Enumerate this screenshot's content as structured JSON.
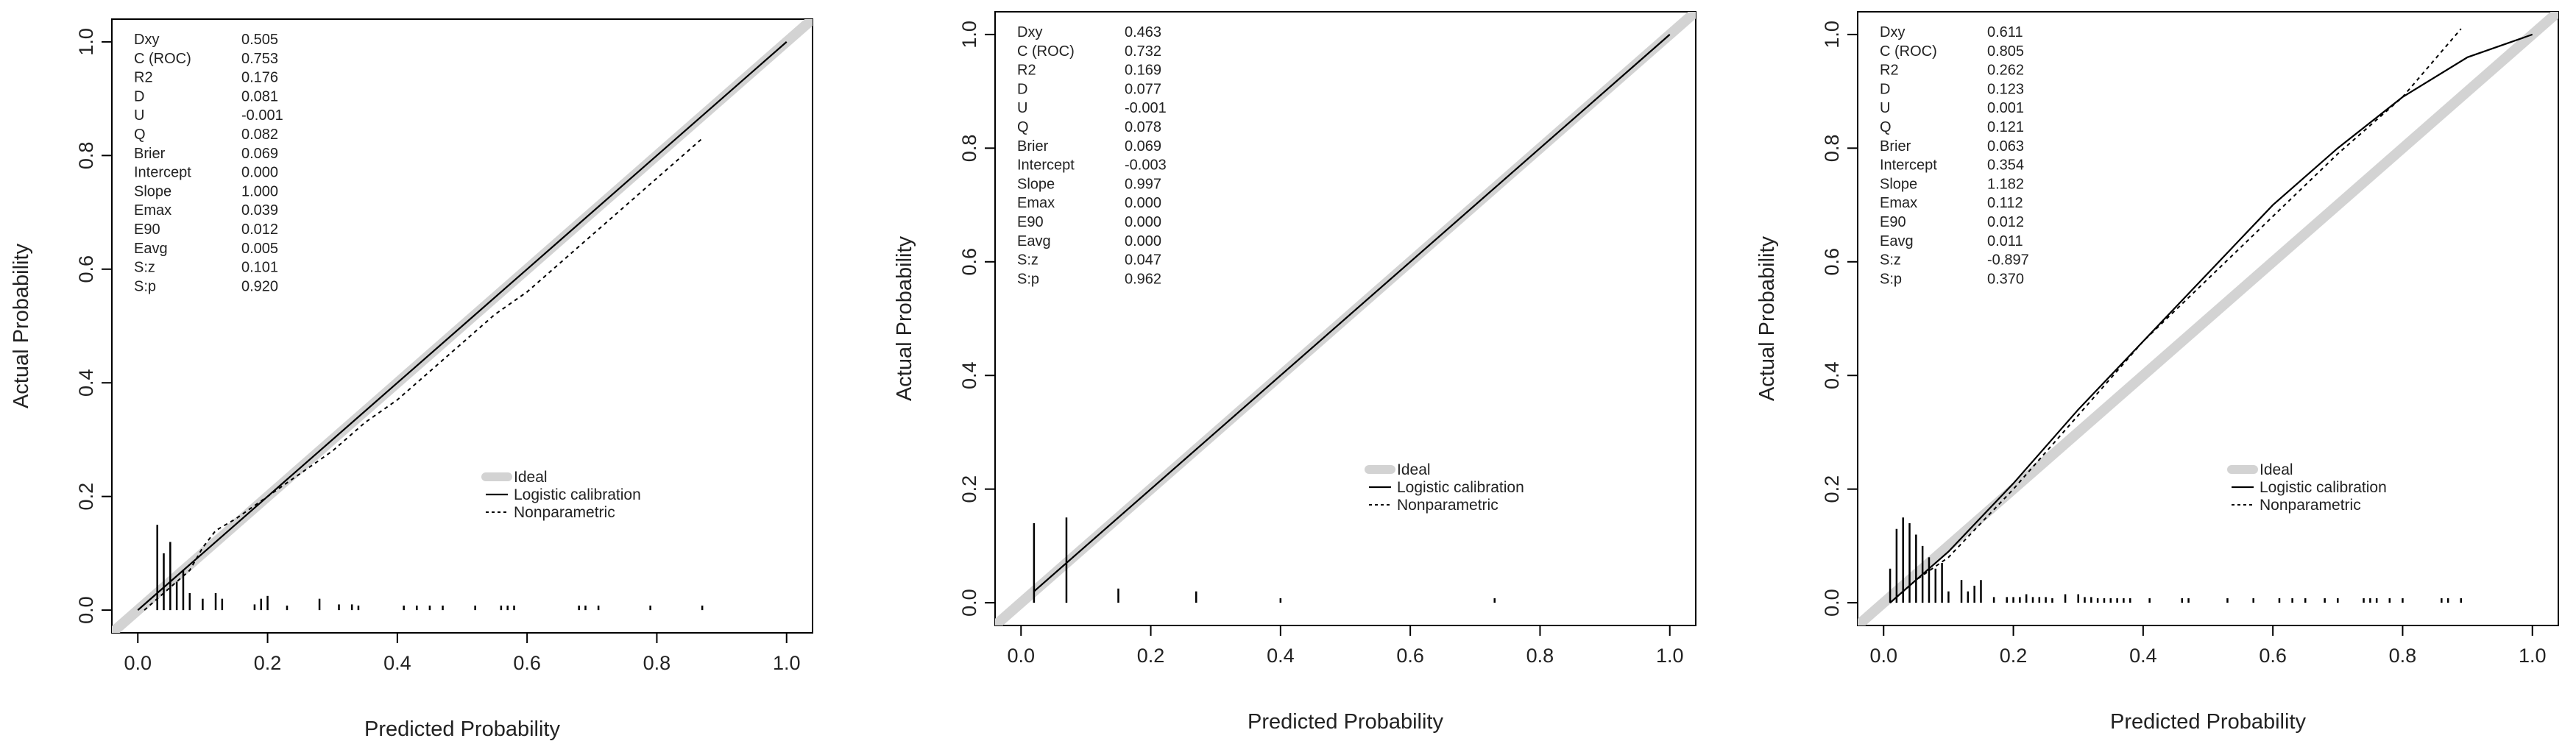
{
  "colors": {
    "ideal_line": "#d3d3d3",
    "calibration_line": "#000000",
    "axis": "#000000",
    "text": "#222222"
  },
  "chart_data": [
    {
      "type": "line",
      "title": "",
      "xlabel": "Predicted Probability",
      "ylabel": "Actual Probability",
      "xlim": [
        -0.04,
        1.04
      ],
      "ylim": [
        -0.04,
        1.04
      ],
      "x_ticks": [
        0.0,
        0.2,
        0.4,
        0.6,
        0.8,
        1.0
      ],
      "x_tick_labels": [
        "0.0",
        "0.2",
        "0.4",
        "0.6",
        "0.8",
        "1.0"
      ],
      "y_ticks": [
        0.0,
        0.2,
        0.4,
        0.6,
        0.8,
        1.0
      ],
      "y_tick_labels": [
        "0.0",
        "0.2",
        "0.4",
        "0.6",
        "0.8",
        "1.0"
      ],
      "grid": false,
      "legend_position": "lower-right",
      "legend": [
        "Ideal",
        "Logistic calibration",
        "Nonparametric"
      ],
      "stats": [
        {
          "label": "Dxy",
          "value": "0.505"
        },
        {
          "label": "C (ROC)",
          "value": "0.753"
        },
        {
          "label": "R2",
          "value": "0.176"
        },
        {
          "label": "D",
          "value": "0.081"
        },
        {
          "label": "U",
          "value": "-0.001"
        },
        {
          "label": "Q",
          "value": "0.082"
        },
        {
          "label": "Brier",
          "value": "0.069"
        },
        {
          "label": "Intercept",
          "value": "0.000"
        },
        {
          "label": "Slope",
          "value": "1.000"
        },
        {
          "label": "Emax",
          "value": "0.039"
        },
        {
          "label": "E90",
          "value": "0.012"
        },
        {
          "label": "Eavg",
          "value": "0.005"
        },
        {
          "label": "S:z",
          "value": "0.101"
        },
        {
          "label": "S:p",
          "value": "0.920"
        }
      ],
      "ideal": {
        "x": [
          0,
          1
        ],
        "y": [
          0,
          1
        ]
      },
      "logistic": {
        "x": [
          0.0,
          0.2,
          0.4,
          0.6,
          0.8,
          1.0
        ],
        "y": [
          0.0,
          0.2,
          0.4,
          0.6,
          0.8,
          1.0
        ]
      },
      "nonparametric": {
        "x": [
          0.01,
          0.05,
          0.08,
          0.1,
          0.12,
          0.15,
          0.2,
          0.25,
          0.3,
          0.35,
          0.4,
          0.45,
          0.5,
          0.55,
          0.6,
          0.65,
          0.7,
          0.75,
          0.8,
          0.87
        ],
        "y": [
          0.0,
          0.04,
          0.07,
          0.11,
          0.14,
          0.16,
          0.2,
          0.24,
          0.28,
          0.33,
          0.37,
          0.42,
          0.47,
          0.52,
          0.56,
          0.61,
          0.66,
          0.71,
          0.76,
          0.83
        ]
      },
      "rug": [
        {
          "x": 0.03,
          "h": 0.15
        },
        {
          "x": 0.04,
          "h": 0.1
        },
        {
          "x": 0.05,
          "h": 0.12
        },
        {
          "x": 0.06,
          "h": 0.05
        },
        {
          "x": 0.07,
          "h": 0.07
        },
        {
          "x": 0.08,
          "h": 0.03
        },
        {
          "x": 0.1,
          "h": 0.02
        },
        {
          "x": 0.12,
          "h": 0.03
        },
        {
          "x": 0.13,
          "h": 0.02
        },
        {
          "x": 0.18,
          "h": 0.01
        },
        {
          "x": 0.19,
          "h": 0.02
        },
        {
          "x": 0.2,
          "h": 0.025
        },
        {
          "x": 0.23,
          "h": 0.008
        },
        {
          "x": 0.28,
          "h": 0.02
        },
        {
          "x": 0.31,
          "h": 0.01
        },
        {
          "x": 0.33,
          "h": 0.01
        },
        {
          "x": 0.34,
          "h": 0.008
        },
        {
          "x": 0.41,
          "h": 0.008
        },
        {
          "x": 0.43,
          "h": 0.008
        },
        {
          "x": 0.45,
          "h": 0.008
        },
        {
          "x": 0.47,
          "h": 0.008
        },
        {
          "x": 0.52,
          "h": 0.008
        },
        {
          "x": 0.56,
          "h": 0.008
        },
        {
          "x": 0.57,
          "h": 0.008
        },
        {
          "x": 0.58,
          "h": 0.008
        },
        {
          "x": 0.68,
          "h": 0.008
        },
        {
          "x": 0.69,
          "h": 0.008
        },
        {
          "x": 0.71,
          "h": 0.008
        },
        {
          "x": 0.79,
          "h": 0.008
        },
        {
          "x": 0.87,
          "h": 0.008
        }
      ]
    },
    {
      "type": "line",
      "title": "",
      "xlabel": "Predicted Probability",
      "ylabel": "Actual Probability",
      "xlim": [
        -0.04,
        1.04
      ],
      "ylim": [
        -0.04,
        1.04
      ],
      "x_ticks": [
        0.0,
        0.2,
        0.4,
        0.6,
        0.8,
        1.0
      ],
      "x_tick_labels": [
        "0.0",
        "0.2",
        "0.4",
        "0.6",
        "0.8",
        "1.0"
      ],
      "y_ticks": [
        0.0,
        0.2,
        0.4,
        0.6,
        0.8,
        1.0
      ],
      "y_tick_labels": [
        "0.0",
        "0.2",
        "0.4",
        "0.6",
        "0.8",
        "1.0"
      ],
      "grid": false,
      "legend_position": "lower-right",
      "legend": [
        "Ideal",
        "Logistic calibration",
        "Nonparametric"
      ],
      "stats": [
        {
          "label": "Dxy",
          "value": "0.463"
        },
        {
          "label": "C (ROC)",
          "value": "0.732"
        },
        {
          "label": "R2",
          "value": "0.169"
        },
        {
          "label": "D",
          "value": "0.077"
        },
        {
          "label": "U",
          "value": "-0.001"
        },
        {
          "label": "Q",
          "value": "0.078"
        },
        {
          "label": "Brier",
          "value": "0.069"
        },
        {
          "label": "Intercept",
          "value": "-0.003"
        },
        {
          "label": "Slope",
          "value": "0.997"
        },
        {
          "label": "Emax",
          "value": "0.000"
        },
        {
          "label": "E90",
          "value": "0.000"
        },
        {
          "label": "Eavg",
          "value": "0.000"
        },
        {
          "label": "S:z",
          "value": "0.047"
        },
        {
          "label": "S:p",
          "value": "0.962"
        }
      ],
      "ideal": {
        "x": [
          0,
          1
        ],
        "y": [
          0,
          1
        ]
      },
      "logistic": {
        "x": [
          0.02,
          0.2,
          0.4,
          0.6,
          0.8,
          1.0
        ],
        "y": [
          0.02,
          0.2,
          0.4,
          0.6,
          0.8,
          1.0
        ]
      },
      "nonparametric": {
        "x": [
          0.02,
          0.07,
          0.15,
          0.27,
          0.4,
          0.6,
          0.8,
          1.0
        ],
        "y": [
          0.02,
          0.07,
          0.15,
          0.27,
          0.4,
          0.6,
          0.8,
          1.0
        ]
      },
      "rug": [
        {
          "x": 0.02,
          "h": 0.14
        },
        {
          "x": 0.07,
          "h": 0.15
        },
        {
          "x": 0.15,
          "h": 0.025
        },
        {
          "x": 0.27,
          "h": 0.02
        },
        {
          "x": 0.4,
          "h": 0.008
        },
        {
          "x": 0.73,
          "h": 0.008
        }
      ]
    },
    {
      "type": "line",
      "title": "",
      "xlabel": "Predicted Probability",
      "ylabel": "Actual Probability",
      "xlim": [
        -0.04,
        1.04
      ],
      "ylim": [
        -0.04,
        1.04
      ],
      "x_ticks": [
        0.0,
        0.2,
        0.4,
        0.6,
        0.8,
        1.0
      ],
      "x_tick_labels": [
        "0.0",
        "0.2",
        "0.4",
        "0.6",
        "0.8",
        "1.0"
      ],
      "y_ticks": [
        0.0,
        0.2,
        0.4,
        0.6,
        0.8,
        1.0
      ],
      "y_tick_labels": [
        "0.0",
        "0.2",
        "0.4",
        "0.6",
        "0.8",
        "1.0"
      ],
      "grid": false,
      "legend_position": "lower-right",
      "legend": [
        "Ideal",
        "Logistic calibration",
        "Nonparametric"
      ],
      "stats": [
        {
          "label": "Dxy",
          "value": "0.611"
        },
        {
          "label": "C (ROC)",
          "value": "0.805"
        },
        {
          "label": "R2",
          "value": "0.262"
        },
        {
          "label": "D",
          "value": "0.123"
        },
        {
          "label": "U",
          "value": "0.001"
        },
        {
          "label": "Q",
          "value": "0.121"
        },
        {
          "label": "Brier",
          "value": "0.063"
        },
        {
          "label": "Intercept",
          "value": "0.354"
        },
        {
          "label": "Slope",
          "value": "1.182"
        },
        {
          "label": "Emax",
          "value": "0.112"
        },
        {
          "label": "E90",
          "value": "0.012"
        },
        {
          "label": "Eavg",
          "value": "0.011"
        },
        {
          "label": "S:z",
          "value": "-0.897"
        },
        {
          "label": "S:p",
          "value": "0.370"
        }
      ],
      "ideal": {
        "x": [
          0,
          1
        ],
        "y": [
          0,
          1
        ]
      },
      "logistic": {
        "x": [
          0.01,
          0.05,
          0.1,
          0.15,
          0.2,
          0.3,
          0.4,
          0.5,
          0.6,
          0.7,
          0.8,
          0.9,
          1.0
        ],
        "y": [
          0.0,
          0.04,
          0.09,
          0.15,
          0.21,
          0.34,
          0.46,
          0.58,
          0.7,
          0.8,
          0.89,
          0.96,
          1.0
        ]
      },
      "nonparametric": {
        "x": [
          0.01,
          0.05,
          0.1,
          0.15,
          0.2,
          0.3,
          0.4,
          0.5,
          0.6,
          0.7,
          0.8,
          0.89
        ],
        "y": [
          0.0,
          0.04,
          0.08,
          0.14,
          0.2,
          0.33,
          0.46,
          0.57,
          0.68,
          0.79,
          0.89,
          1.01
        ]
      },
      "rug": [
        {
          "x": 0.01,
          "h": 0.06
        },
        {
          "x": 0.02,
          "h": 0.13
        },
        {
          "x": 0.03,
          "h": 0.15
        },
        {
          "x": 0.04,
          "h": 0.14
        },
        {
          "x": 0.05,
          "h": 0.12
        },
        {
          "x": 0.06,
          "h": 0.1
        },
        {
          "x": 0.07,
          "h": 0.08
        },
        {
          "x": 0.08,
          "h": 0.06
        },
        {
          "x": 0.09,
          "h": 0.07
        },
        {
          "x": 0.1,
          "h": 0.02
        },
        {
          "x": 0.12,
          "h": 0.04
        },
        {
          "x": 0.13,
          "h": 0.02
        },
        {
          "x": 0.14,
          "h": 0.03
        },
        {
          "x": 0.15,
          "h": 0.04
        },
        {
          "x": 0.17,
          "h": 0.01
        },
        {
          "x": 0.19,
          "h": 0.01
        },
        {
          "x": 0.2,
          "h": 0.01
        },
        {
          "x": 0.21,
          "h": 0.01
        },
        {
          "x": 0.22,
          "h": 0.015
        },
        {
          "x": 0.23,
          "h": 0.01
        },
        {
          "x": 0.24,
          "h": 0.01
        },
        {
          "x": 0.25,
          "h": 0.01
        },
        {
          "x": 0.26,
          "h": 0.008
        },
        {
          "x": 0.28,
          "h": 0.015
        },
        {
          "x": 0.3,
          "h": 0.015
        },
        {
          "x": 0.31,
          "h": 0.01
        },
        {
          "x": 0.32,
          "h": 0.01
        },
        {
          "x": 0.33,
          "h": 0.008
        },
        {
          "x": 0.34,
          "h": 0.008
        },
        {
          "x": 0.35,
          "h": 0.008
        },
        {
          "x": 0.36,
          "h": 0.008
        },
        {
          "x": 0.37,
          "h": 0.008
        },
        {
          "x": 0.38,
          "h": 0.008
        },
        {
          "x": 0.41,
          "h": 0.008
        },
        {
          "x": 0.46,
          "h": 0.008
        },
        {
          "x": 0.47,
          "h": 0.008
        },
        {
          "x": 0.53,
          "h": 0.008
        },
        {
          "x": 0.57,
          "h": 0.008
        },
        {
          "x": 0.61,
          "h": 0.008
        },
        {
          "x": 0.63,
          "h": 0.008
        },
        {
          "x": 0.65,
          "h": 0.008
        },
        {
          "x": 0.68,
          "h": 0.008
        },
        {
          "x": 0.7,
          "h": 0.008
        },
        {
          "x": 0.74,
          "h": 0.008
        },
        {
          "x": 0.75,
          "h": 0.008
        },
        {
          "x": 0.76,
          "h": 0.008
        },
        {
          "x": 0.78,
          "h": 0.008
        },
        {
          "x": 0.8,
          "h": 0.008
        },
        {
          "x": 0.86,
          "h": 0.008
        },
        {
          "x": 0.87,
          "h": 0.008
        },
        {
          "x": 0.89,
          "h": 0.008
        }
      ]
    }
  ]
}
